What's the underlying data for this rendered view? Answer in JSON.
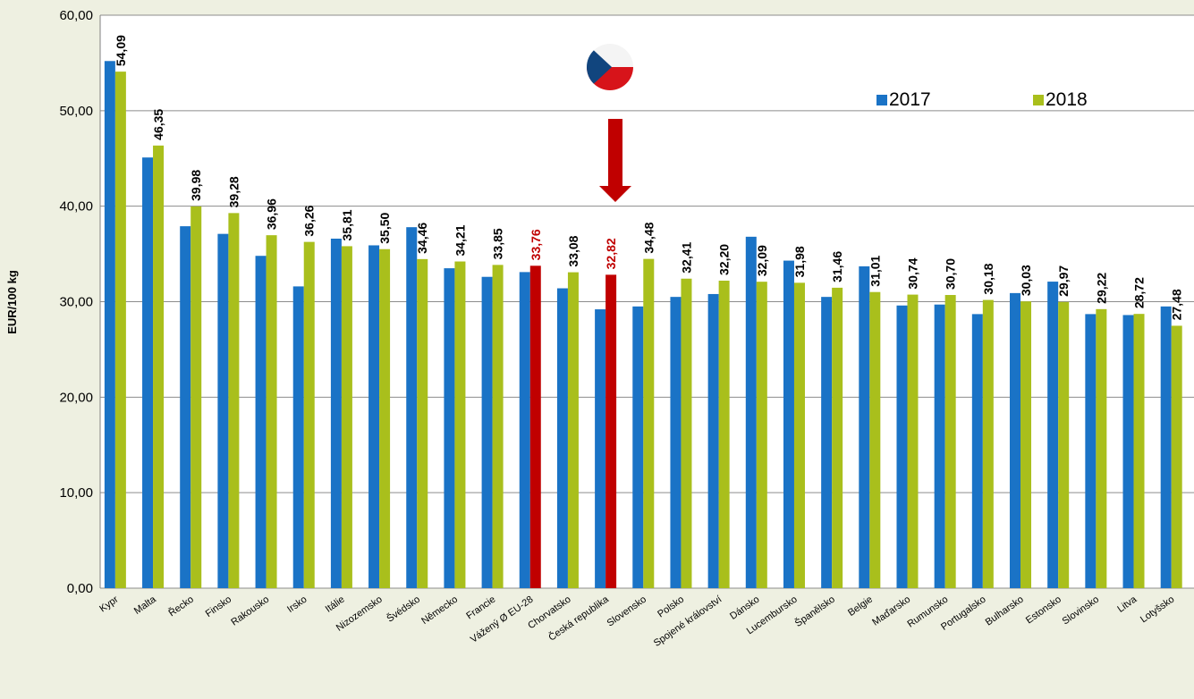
{
  "chart_data": {
    "type": "bar",
    "y_label": "EUR/100 kg",
    "categories": [
      "Kypr",
      "Malta",
      "Řecko",
      "Finsko",
      "Rakousko",
      "Irsko",
      "Itálie",
      "Nizozemsko",
      "Švédsko",
      "Německo",
      "Francie",
      "Vážený Ø EU-28",
      "Chorvatsko",
      "Česká republika",
      "Slovensko",
      "Polsko",
      "Spojené království",
      "Dánsko",
      "Lucembursko",
      "Španělsko",
      "Belgie",
      "Maďarsko",
      "Rumunsko",
      "Portugalsko",
      "Bulharsko",
      "Estonsko",
      "Slovinsko",
      "Litva",
      "Lotyšsko"
    ],
    "series": [
      {
        "name": "2017",
        "color": "#1a73c6",
        "values": [
          55.2,
          45.1,
          37.9,
          37.1,
          34.8,
          31.6,
          36.6,
          35.9,
          37.8,
          33.5,
          32.6,
          33.1,
          31.4,
          29.2,
          29.5,
          30.5,
          30.8,
          36.8,
          34.3,
          30.5,
          33.7,
          29.6,
          29.7,
          28.7,
          30.9,
          32.1,
          28.7,
          28.6,
          29.5
        ]
      },
      {
        "name": "2018",
        "color": "#a9bf1c",
        "highlight_color": "#c00000",
        "highlight": [
          11,
          13
        ],
        "values": [
          54.09,
          46.35,
          39.98,
          39.28,
          36.96,
          36.26,
          35.81,
          35.5,
          34.46,
          34.21,
          33.85,
          33.76,
          33.08,
          32.82,
          34.48,
          32.41,
          32.2,
          32.09,
          31.98,
          31.46,
          31.01,
          30.74,
          30.7,
          30.18,
          30.03,
          29.97,
          29.22,
          28.72,
          27.48
        ],
        "value_labels": [
          "54,09",
          "46,35",
          "39,98",
          "39,28",
          "36,96",
          "36,26",
          "35,81",
          "35,50",
          "34,46",
          "34,21",
          "33,85",
          "33,76",
          "33,08",
          "32,82",
          "34,48",
          "32,41",
          "32,20",
          "32,09",
          "31,98",
          "31,46",
          "31,01",
          "30,74",
          "30,70",
          "30,18",
          "30,03",
          "29,97",
          "29,22",
          "28,72",
          "27,48"
        ]
      }
    ],
    "ylim": [
      0,
      60
    ],
    "yticks": [
      {
        "value": 0,
        "label": "0,00"
      },
      {
        "value": 10,
        "label": "10,00"
      },
      {
        "value": 20,
        "label": "20,00"
      },
      {
        "value": 30,
        "label": "30,00"
      },
      {
        "value": 40,
        "label": "40,00"
      },
      {
        "value": 50,
        "label": "50,00"
      },
      {
        "value": 60,
        "label": "60,00"
      }
    ],
    "grid": true,
    "legend": "upper right"
  }
}
